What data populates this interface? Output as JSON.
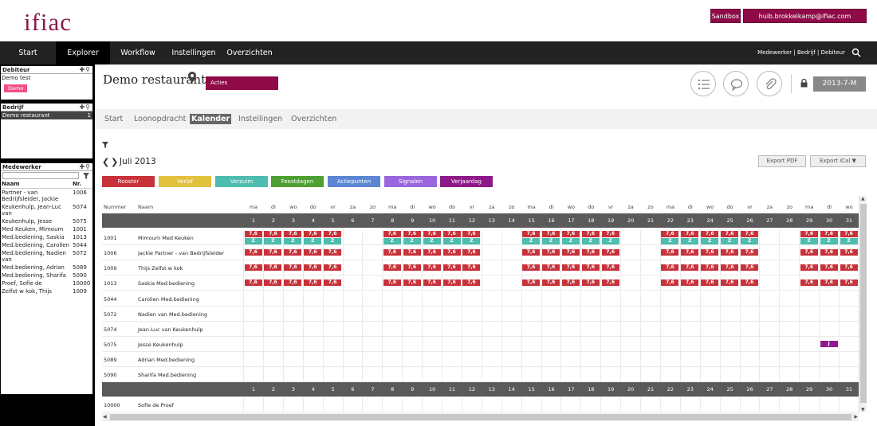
{
  "header": {
    "logo": "ifiac",
    "sandbox": "Sandbox",
    "user_email": "huib.brokkelkamp@ifiac.com"
  },
  "nav": {
    "items": [
      "Start",
      "Explorer",
      "Workflow",
      "Instellingen",
      "Overzichten"
    ],
    "active": "Explorer",
    "right_text": "Medewerker | Bedrijf | Debiteur"
  },
  "sidebar": {
    "debiteur": {
      "title": "Debiteur",
      "name": "Demo test",
      "badge": "Demo"
    },
    "bedrijf": {
      "title": "Bedrijf",
      "name": "Demo restaurant",
      "count": "1"
    },
    "medewerker": {
      "title": "Medewerker",
      "col_naam": "Naam",
      "col_nr": "Nr.",
      "rows": [
        {
          "naam": "Partner - van Bedrijfsleider, Jackie",
          "nr": "1006"
        },
        {
          "naam": "Keukenhulp, Jean-Luc van",
          "nr": "5074"
        },
        {
          "naam": "Keukenhulp, Jesse",
          "nr": "5075"
        },
        {
          "naam": "Med Keuken, Mimoum",
          "nr": "1001"
        },
        {
          "naam": "Med.bediening, Saskia",
          "nr": "1013"
        },
        {
          "naam": "Med.bediening, Carolien",
          "nr": "5044"
        },
        {
          "naam": "Med.bediening, Nadien van",
          "nr": "5072"
        },
        {
          "naam": "Med.bediening, Adrian",
          "nr": "5089"
        },
        {
          "naam": "Med.bediening, Sharifa",
          "nr": "5090"
        },
        {
          "naam": "Proef, Sofie de",
          "nr": "10000"
        },
        {
          "naam": "Zelfst w kok, Thijs",
          "nr": "1009"
        }
      ]
    }
  },
  "main": {
    "title": "Demo restaurant",
    "acties": "Acties",
    "period": "2013-7-M",
    "subnav": [
      "Start",
      "Loonopdracht",
      "Kalender",
      "Instellingen",
      "Overzichten"
    ],
    "subnav_active": "Kalender",
    "month": "Juli 2013",
    "export_pdf": "Export PDF",
    "export_ical": "Export iCal",
    "tags": [
      {
        "label": "Rooster",
        "color": "#c8323a"
      },
      {
        "label": "Verlof",
        "color": "#e2c13c"
      },
      {
        "label": "Verzuim",
        "color": "#4dbdb0"
      },
      {
        "label": "Feestdagen",
        "color": "#4ea032"
      },
      {
        "label": "Actiepunten",
        "color": "#5b86d2"
      },
      {
        "label": "Signalen",
        "color": "#9966dd"
      },
      {
        "label": "Verjaardag",
        "color": "#8e1a8a"
      }
    ],
    "calendar": {
      "col_nummer": "Nummer",
      "col_naam": "Naam",
      "weekdays": [
        "ma",
        "di",
        "wo",
        "do",
        "vr",
        "za",
        "zo",
        "ma",
        "di",
        "wo",
        "do",
        "vr",
        "za",
        "zo",
        "ma",
        "di",
        "wo",
        "do",
        "vr",
        "za",
        "zo",
        "ma",
        "di",
        "wo",
        "do",
        "vr",
        "za",
        "zo",
        "ma",
        "di",
        "wo"
      ],
      "days": [
        "1",
        "2",
        "3",
        "4",
        "5",
        "6",
        "7",
        "8",
        "9",
        "10",
        "11",
        "12",
        "13",
        "14",
        "15",
        "16",
        "17",
        "18",
        "19",
        "20",
        "21",
        "22",
        "23",
        "24",
        "25",
        "26",
        "27",
        "28",
        "29",
        "30",
        "31"
      ],
      "rooster_value": "7,6",
      "verzuim_value": "Z",
      "verjaardag_value": "J",
      "rows": [
        {
          "nummer": "1001",
          "naam": "Mimoum Med Keuken",
          "rooster_days": [
            1,
            2,
            3,
            4,
            5,
            8,
            9,
            10,
            11,
            12,
            15,
            16,
            17,
            18,
            19,
            22,
            23,
            24,
            25,
            26,
            29,
            30,
            31
          ],
          "verzuim_days": [
            1,
            2,
            3,
            4,
            5,
            8,
            9,
            10,
            11,
            12,
            15,
            16,
            17,
            18,
            19,
            22,
            23,
            24,
            25,
            26,
            29,
            30,
            31
          ]
        },
        {
          "nummer": "1006",
          "naam": "Jackie Partner - van Bedrijfsleider",
          "rooster_days": [
            1,
            2,
            3,
            4,
            5,
            8,
            9,
            10,
            11,
            12,
            15,
            16,
            17,
            18,
            19,
            22,
            23,
            24,
            25,
            26,
            29,
            30,
            31
          ]
        },
        {
          "nummer": "1009",
          "naam": "Thijs Zelfst w kok",
          "rooster_days": [
            1,
            2,
            3,
            4,
            5,
            8,
            9,
            10,
            11,
            12,
            15,
            16,
            17,
            18,
            19,
            22,
            23,
            24,
            25,
            26,
            29,
            30,
            31
          ]
        },
        {
          "nummer": "1013",
          "naam": "Saskia Med.bediening",
          "rooster_days": [
            1,
            2,
            3,
            4,
            5,
            8,
            9,
            10,
            11,
            12,
            15,
            16,
            17,
            18,
            19,
            22,
            23,
            24,
            25,
            26,
            29,
            30,
            31
          ]
        },
        {
          "nummer": "5044",
          "naam": "Carolien Med.bediening"
        },
        {
          "nummer": "5072",
          "naam": "Nadien van Med.bediening"
        },
        {
          "nummer": "5074",
          "naam": "Jean-Luc van Keukenhulp"
        },
        {
          "nummer": "5075",
          "naam": "Jesse Keukenhulp",
          "verjaardag_days": [
            30
          ]
        },
        {
          "nummer": "5089",
          "naam": "Adrian Med.bediening"
        },
        {
          "nummer": "5090",
          "naam": "Sharifa Med.bediening"
        },
        {
          "nummer": "10000",
          "naam": "Sofie de Proef"
        }
      ]
    }
  }
}
